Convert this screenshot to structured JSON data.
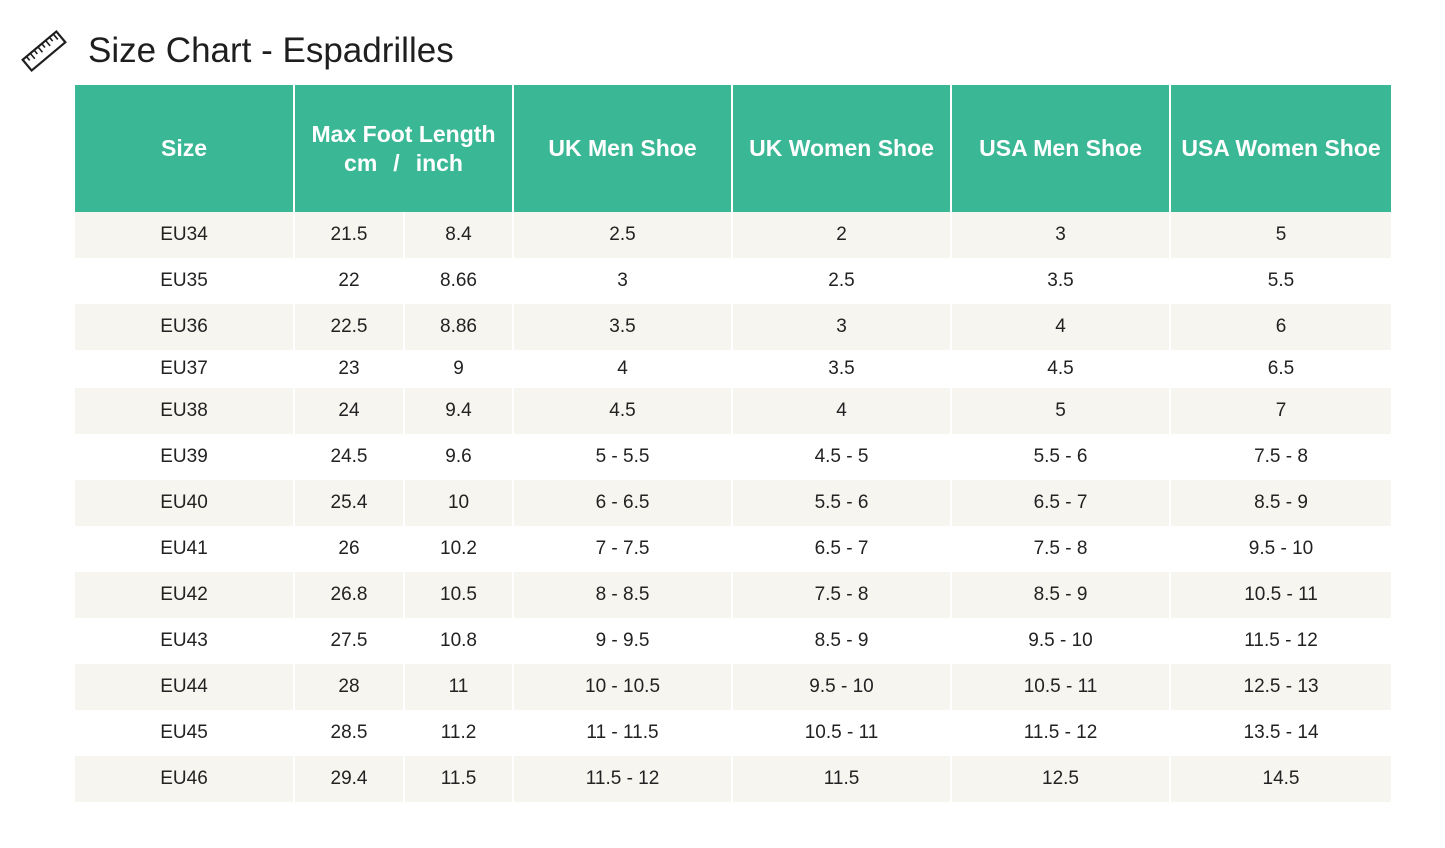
{
  "page": {
    "title": "Size Chart - Espadrilles",
    "icon": "ruler-icon"
  },
  "colors": {
    "header_bg": "#3ab795",
    "header_text": "#ffffff",
    "row_alt_bg": "#f6f5f0",
    "row_bg": "#ffffff",
    "cell_text": "#222222"
  },
  "table": {
    "headers": {
      "size": "Size",
      "foot_length_title": "Max Foot Length",
      "foot_length_cm": "cm",
      "foot_length_sep": "/",
      "foot_length_inch": "inch",
      "uk_men": "UK Men Shoe",
      "uk_women": "UK Women Shoe",
      "usa_men": "USA Men Shoe",
      "usa_women": "USA Women Shoe"
    },
    "rows": [
      [
        "EU34",
        "21.5",
        "8.4",
        "2.5",
        "2",
        "3",
        "5"
      ],
      [
        "EU35",
        "22",
        "8.66",
        "3",
        "2.5",
        "3.5",
        "5.5"
      ],
      [
        "EU36",
        "22.5",
        "8.86",
        "3.5",
        "3",
        "4",
        "6"
      ],
      [
        "EU37",
        "23",
        "9",
        "4",
        "3.5",
        "4.5",
        "6.5"
      ],
      [
        "EU38",
        "24",
        "9.4",
        "4.5",
        "4",
        "5",
        "7"
      ],
      [
        "EU39",
        "24.5",
        "9.6",
        "5 - 5.5",
        "4.5 - 5",
        "5.5 - 6",
        "7.5 - 8"
      ],
      [
        "EU40",
        "25.4",
        "10",
        "6 - 6.5",
        "5.5 - 6",
        "6.5 - 7",
        "8.5 - 9"
      ],
      [
        "EU41",
        "26",
        "10.2",
        "7 - 7.5",
        "6.5 - 7",
        "7.5 - 8",
        "9.5 - 10"
      ],
      [
        "EU42",
        "26.8",
        "10.5",
        "8 - 8.5",
        "7.5 - 8",
        "8.5 - 9",
        "10.5 - 11"
      ],
      [
        "EU43",
        "27.5",
        "10.8",
        "9 - 9.5",
        "8.5 - 9",
        "9.5 - 10",
        "11.5 - 12"
      ],
      [
        "EU44",
        "28",
        "11",
        "10 - 10.5",
        "9.5 - 10",
        "10.5 - 11",
        "12.5 - 13"
      ],
      [
        "EU45",
        "28.5",
        "11.2",
        "11 - 11.5",
        "10.5 - 11",
        "11.5 - 12",
        "13.5 - 14"
      ],
      [
        "EU46",
        "29.4",
        "11.5",
        "11.5 - 12",
        "11.5",
        "12.5",
        "14.5"
      ]
    ]
  }
}
